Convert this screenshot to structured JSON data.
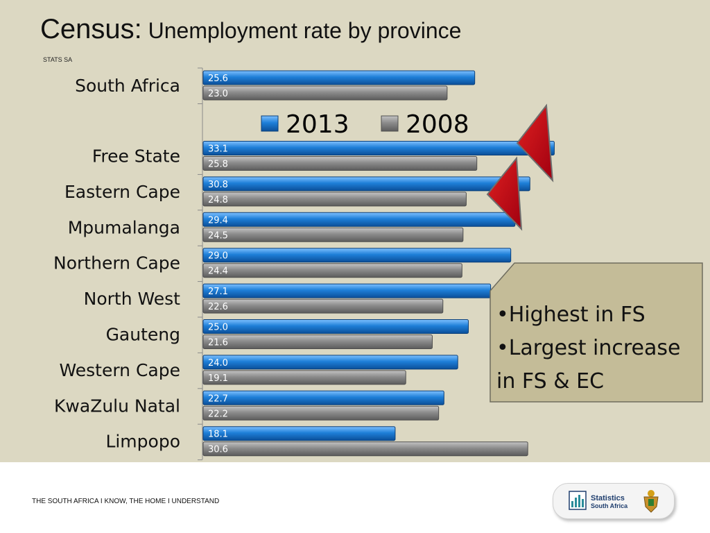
{
  "title": {
    "main": "Census:",
    "sub": "Unemployment rate by province"
  },
  "source": "STATS SA",
  "chart_data": {
    "type": "bar",
    "orientation": "horizontal",
    "categories": [
      "South Africa",
      "Free State",
      "Eastern Cape",
      "Mpumalanga",
      "Northern Cape",
      "North West",
      "Gauteng",
      "Western Cape",
      "KwaZulu Natal",
      "Limpopo"
    ],
    "series": [
      {
        "name": "2013",
        "color": "#1e7fd8",
        "values": [
          25.6,
          33.1,
          30.8,
          29.4,
          29.0,
          27.1,
          25.0,
          24.0,
          22.7,
          18.1
        ]
      },
      {
        "name": "2008",
        "color": "#8c8c8c",
        "values": [
          23.0,
          25.8,
          24.8,
          24.5,
          24.4,
          22.6,
          21.6,
          19.1,
          22.2,
          30.6
        ]
      }
    ],
    "data_labels": true,
    "legend_position": "top-center",
    "grid": false
  },
  "callout": {
    "bullets": [
      "Highest in FS",
      "Largest increase in FS & EC"
    ]
  },
  "footer": {
    "tagline": "THE SOUTH AFRICA I KNOW, THE HOME I UNDERSTAND"
  },
  "logo": {
    "line1": "Statistics",
    "line2": "South Africa"
  }
}
